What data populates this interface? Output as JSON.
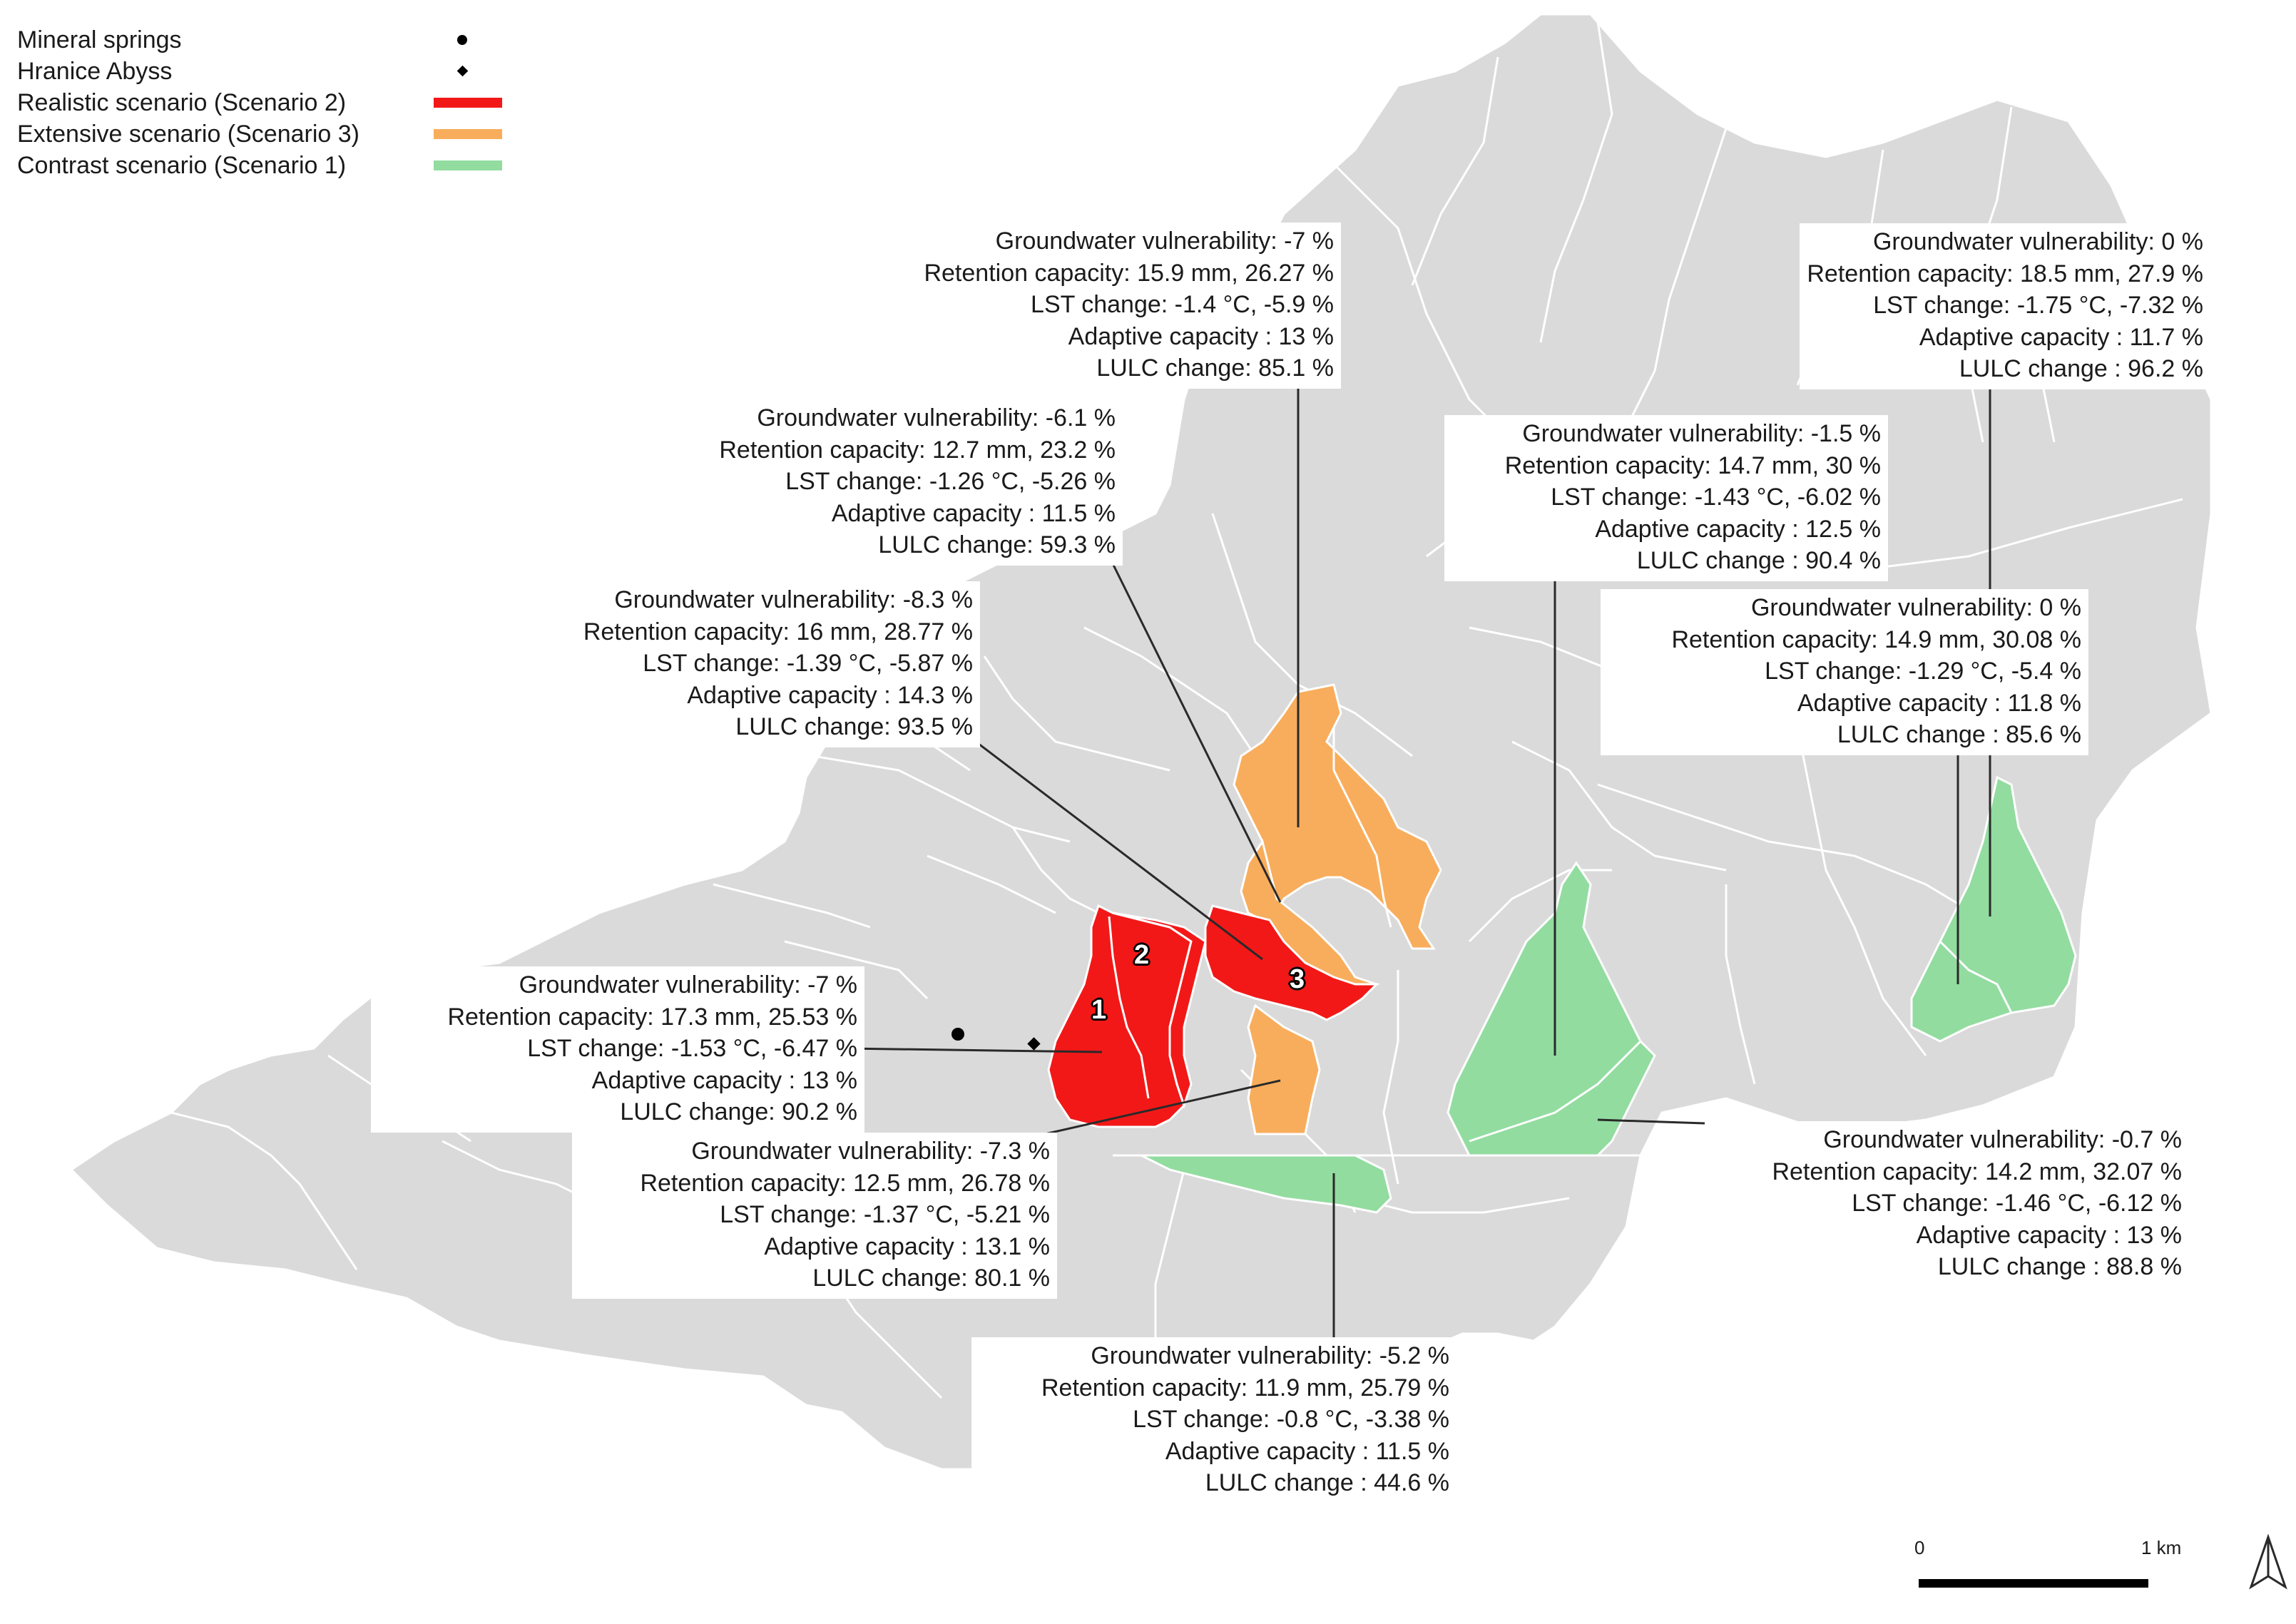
{
  "legend": [
    {
      "label": "Mineral springs",
      "symbol": "dot"
    },
    {
      "label": "Hranice Abyss",
      "symbol": "diamond"
    },
    {
      "label": "Realistic scenario (Scenario 2)",
      "symbol": "swatch",
      "color": "#f21818"
    },
    {
      "label": "Extensive scenario (Scenario 3)",
      "symbol": "swatch",
      "color": "#f8ad5c"
    },
    {
      "label": "Contrast scenario (Scenario 1)",
      "symbol": "swatch",
      "color": "#92dca0"
    }
  ],
  "colors": {
    "land": "#dadada",
    "boundary": "#ffffff",
    "realistic": "#f21818",
    "extensive": "#f8ad5c",
    "contrast": "#92dca0",
    "leader": "#2a2a2a"
  },
  "area_labels": [
    "1",
    "2",
    "3"
  ],
  "annotations": [
    {
      "id": "top-center",
      "lines": [
        "Groundwater vulnerability: -7 %",
        "Retention capacity: 15.9 mm, 26.27 %",
        "LST change: -1.4 °C, -5.9 %",
        "Adaptive capacity : 13 %",
        "LULC change: 85.1 %"
      ]
    },
    {
      "id": "upper-left",
      "lines": [
        "Groundwater vulnerability: -6.1 %",
        "Retention capacity: 12.7 mm, 23.2 %",
        "LST change: -1.26 °C, -5.26 %",
        "Adaptive capacity : 11.5 %",
        "LULC change: 59.3 %"
      ]
    },
    {
      "id": "middle-left",
      "lines": [
        "Groundwater vulnerability: -8.3 %",
        "Retention capacity: 16 mm, 28.77 %",
        "LST change: -1.39 °C, -5.87 %",
        "Adaptive capacity : 14.3 %",
        "LULC change: 93.5 %"
      ]
    },
    {
      "id": "lower-left",
      "lines": [
        "Groundwater vulnerability: -7 %",
        "Retention capacity: 17.3 mm, 25.53 %",
        "LST change: -1.53 °C, -6.47 %",
        "Adaptive capacity : 13 %",
        "LULC change: 90.2 %"
      ]
    },
    {
      "id": "bottom-left",
      "lines": [
        "Groundwater vulnerability: -7.3 %",
        "Retention capacity: 12.5 mm, 26.78 %",
        "LST change: -1.37 °C, -5.21 %",
        "Adaptive capacity : 13.1 %",
        "LULC change: 80.1 %"
      ]
    },
    {
      "id": "bottom-center",
      "lines": [
        "Groundwater vulnerability: -5.2 %",
        "Retention capacity: 11.9 mm, 25.79 %",
        "LST change: -0.8 °C, -3.38 %",
        "Adaptive capacity : 11.5 %",
        "LULC change : 44.6 %"
      ]
    },
    {
      "id": "center-right",
      "lines": [
        "Groundwater vulnerability: -1.5 %",
        "Retention capacity: 14.7 mm, 30 %",
        "LST change: -1.43 °C, -6.02 %",
        "Adaptive capacity : 12.5 %",
        "LULC change : 90.4 %"
      ]
    },
    {
      "id": "top-right",
      "lines": [
        "Groundwater vulnerability: 0 %",
        "Retention capacity: 18.5 mm, 27.9 %",
        "LST change: -1.75 °C, -7.32 %",
        "Adaptive capacity : 11.7 %",
        "LULC change : 96.2 %"
      ]
    },
    {
      "id": "mid-right",
      "lines": [
        "Groundwater vulnerability: 0 %",
        "Retention capacity: 14.9 mm, 30.08 %",
        "LST change: -1.29 °C, -5.4 %",
        "Adaptive capacity : 11.8 %",
        "LULC change : 85.6 %"
      ]
    },
    {
      "id": "lower-right",
      "lines": [
        "Groundwater vulnerability: -0.7 %",
        "Retention capacity: 14.2 mm, 32.07 %",
        "LST change: -1.46 °C, -6.12 %",
        "Adaptive capacity : 13 %",
        "LULC change : 88.8 %"
      ]
    }
  ],
  "scale": {
    "start": "0",
    "end": "1 km"
  },
  "north_arrow": "north-arrow-icon"
}
